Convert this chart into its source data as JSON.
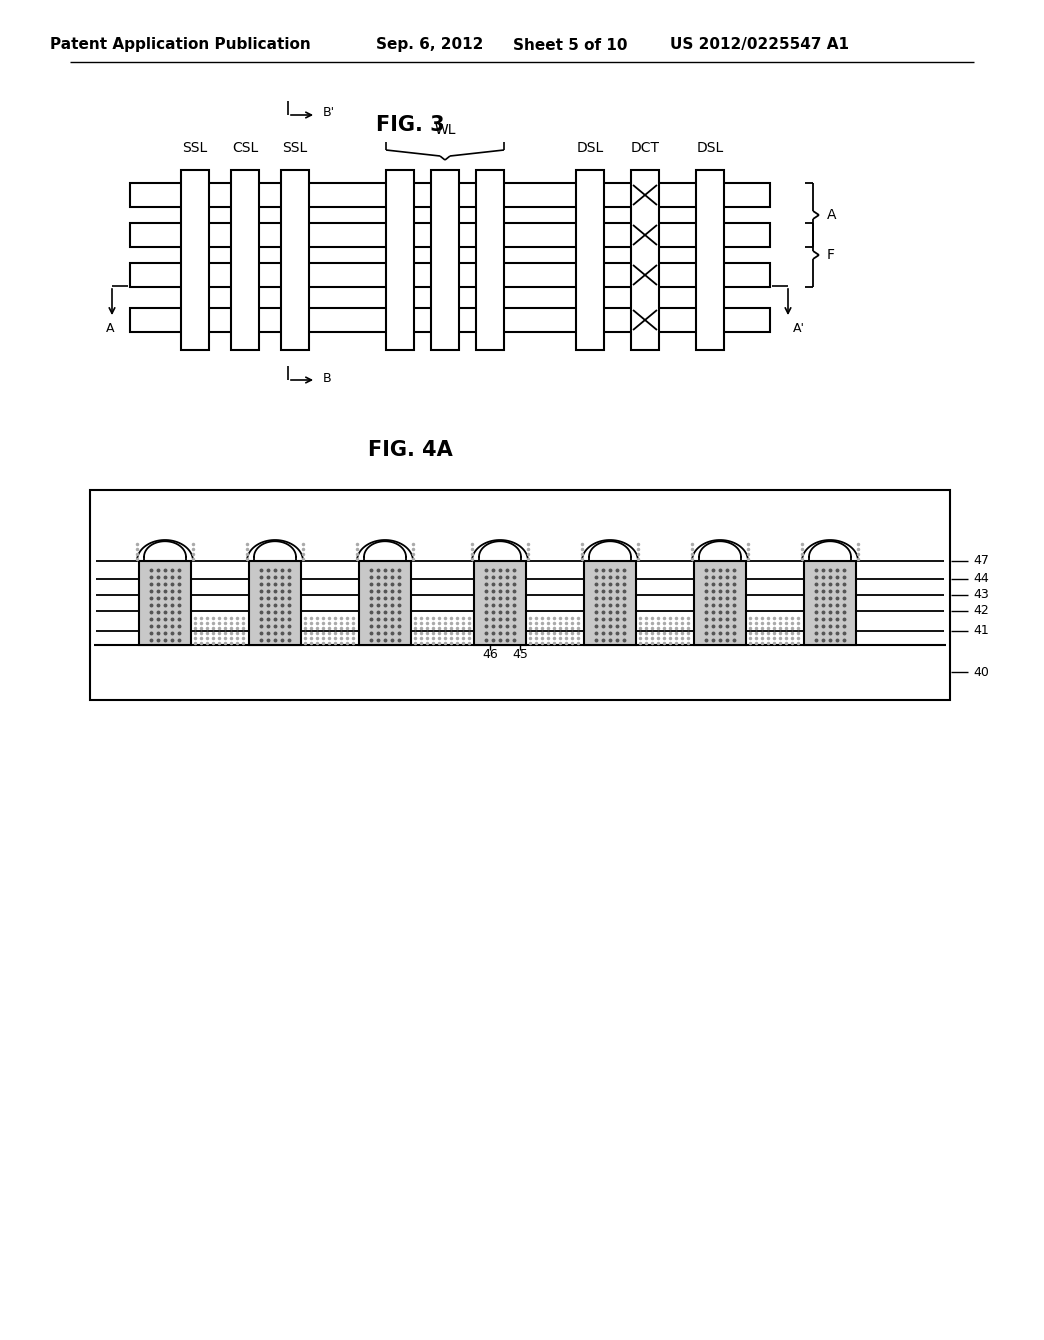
{
  "background_color": "#ffffff",
  "header_text": "Patent Application Publication",
  "header_date": "Sep. 6, 2012",
  "header_sheet": "Sheet 5 of 10",
  "header_patent": "US 2012/0225547 A1",
  "fig3_title": "FIG. 3",
  "fig4a_title": "FIG. 4A"
}
